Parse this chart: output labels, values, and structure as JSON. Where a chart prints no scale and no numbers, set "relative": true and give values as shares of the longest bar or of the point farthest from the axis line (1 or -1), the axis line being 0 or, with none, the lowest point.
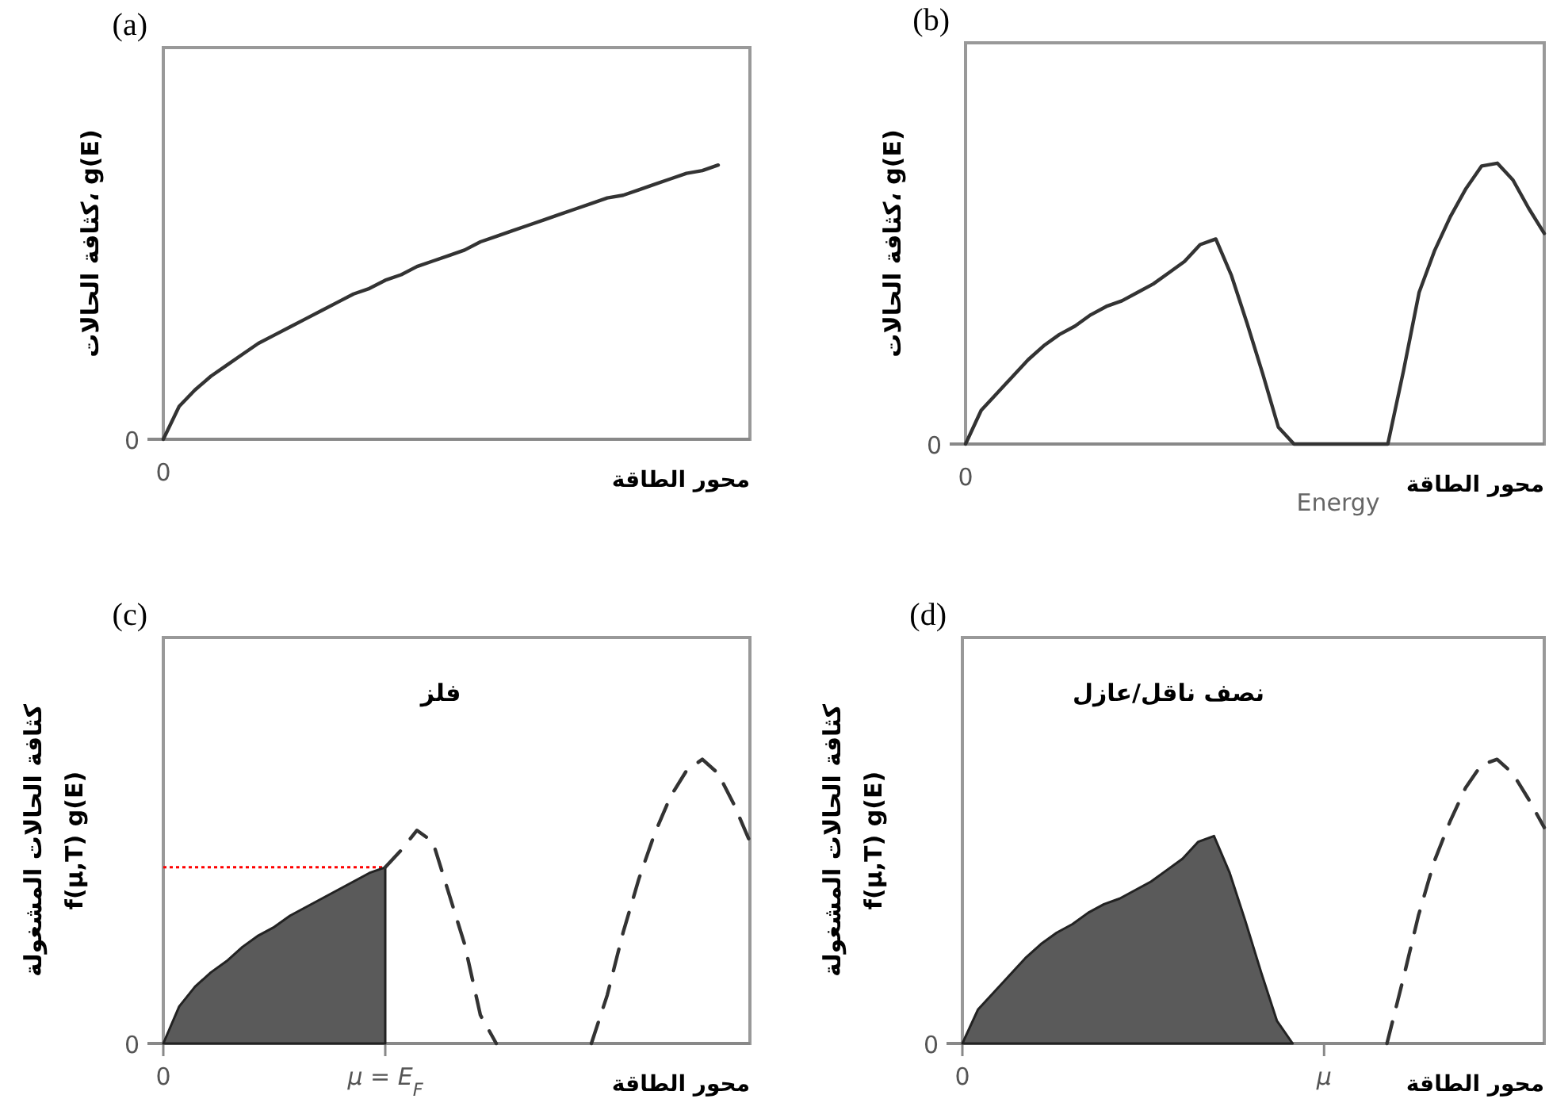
{
  "chart_data": [
    {
      "type": "line",
      "title": "(a)",
      "xlabel": "محور الطاقة",
      "ylabel": "كثافة الحالات، g(E)",
      "relative": true,
      "annotations": [
        "0",
        "0"
      ],
      "categories": [
        null,
        null,
        null,
        null,
        null,
        null,
        null,
        null,
        null,
        null,
        null,
        null,
        null,
        null,
        null,
        null,
        null,
        null,
        null,
        null,
        null,
        null,
        null,
        null,
        null,
        null,
        null,
        null,
        null,
        null,
        null,
        null,
        null,
        null,
        null,
        null,
        null,
        null
      ],
      "series": [
        {
          "color": "#333333",
          "line_style": "solid",
          "values": [
            0,
            0.12,
            0.18,
            0.23,
            0.27,
            0.31,
            0.35,
            0.38,
            0.41,
            0.44,
            0.47,
            0.5,
            0.53,
            0.55,
            0.58,
            0.6,
            0.63,
            0.65,
            0.67,
            0.69,
            0.72,
            0.74,
            0.76,
            0.78,
            0.8,
            0.82,
            0.84,
            0.86,
            0.88,
            0.89,
            0.91,
            0.93,
            0.95,
            0.97,
            0.98,
            1,
            null,
            null
          ]
        }
      ]
    },
    {
      "type": "line",
      "title": "(b)",
      "xlabel": "محور الطاقة",
      "ylabel": "كثافة الحالات، g(E)",
      "relative": true,
      "annotations": [
        "0",
        "0",
        "Energy"
      ],
      "categories": [
        null,
        null,
        null,
        null,
        null,
        null,
        null,
        null,
        null,
        null,
        null,
        null,
        null,
        null,
        null,
        null,
        null,
        null,
        null,
        null,
        null,
        null,
        null,
        null,
        null,
        null,
        null,
        null,
        null,
        null,
        null,
        null,
        null,
        null,
        null,
        null,
        null,
        null
      ],
      "series": [
        {
          "color": "#333333",
          "line_style": "solid",
          "values": [
            0,
            0.12,
            0.18,
            0.24,
            0.3,
            0.35,
            0.39,
            0.42,
            0.46,
            0.49,
            0.51,
            0.54,
            0.57,
            0.61,
            0.65,
            0.71,
            0.73,
            0.6,
            0.43,
            0.25,
            0.06,
            0,
            0,
            0,
            0,
            0,
            0,
            0,
            0.26,
            0.54,
            0.69,
            0.81,
            0.91,
            0.99,
            1,
            0.94,
            0.84,
            0.75
          ]
        }
      ]
    },
    {
      "type": "area",
      "title": "(c)",
      "xlabel": "محور الطاقة",
      "ylabel": "كثافة الحالات المشغولة\nf(μ,T) g(E)",
      "relative": true,
      "annotations": [
        "0",
        "فلز"
      ],
      "categories": [
        "0",
        null,
        null,
        null,
        null,
        null,
        null,
        null,
        null,
        null,
        null,
        null,
        null,
        null,
        "μ = E$_{F}$",
        null,
        null,
        null,
        null,
        null,
        null,
        null,
        null,
        null,
        null,
        null,
        null,
        null,
        null,
        null,
        null,
        null,
        null,
        null,
        null,
        null,
        null,
        null
      ],
      "ref_lines": [
        {
          "axis": "y",
          "value": 0.62,
          "color": "#ff0000",
          "line_style": "dotted"
        }
      ],
      "series": [
        {
          "color": "#5a5a5a",
          "line_style": "solid",
          "values": [
            0,
            0.13,
            0.2,
            0.25,
            0.29,
            0.34,
            0.38,
            0.41,
            0.45,
            0.48,
            0.51,
            0.54,
            0.57,
            0.6,
            0.62,
            null,
            null,
            null,
            null,
            null,
            null,
            null,
            null,
            null,
            null,
            null,
            null,
            null,
            null,
            null,
            null,
            null,
            null,
            null,
            null,
            null,
            null,
            null
          ]
        },
        {
          "type": "line",
          "color": "#333333",
          "line_style": "dashed",
          "values": [
            null,
            null,
            null,
            null,
            null,
            null,
            null,
            null,
            null,
            null,
            null,
            null,
            null,
            null,
            0.62,
            0.68,
            0.75,
            0.71,
            0.53,
            0.35,
            0.1,
            0,
            null,
            null,
            null,
            null,
            null,
            0,
            0.17,
            0.39,
            0.58,
            0.74,
            0.87,
            0.96,
            1,
            0.95,
            0.84,
            0.71
          ]
        }
      ]
    },
    {
      "type": "area",
      "title": "(d)",
      "xlabel": "محور الطاقة",
      "ylabel": "كثافة الحالات المشغولة\nf(μ,T) g(E)",
      "relative": true,
      "annotations": [
        "0",
        "نصف ناقل/عازل"
      ],
      "categories": [
        "0",
        null,
        null,
        null,
        null,
        null,
        null,
        null,
        null,
        null,
        null,
        null,
        null,
        null,
        null,
        null,
        null,
        null,
        null,
        null,
        null,
        null,
        null,
        "μ",
        null,
        null,
        null,
        null,
        null,
        null,
        null,
        null,
        null,
        null,
        null,
        null,
        null,
        null
      ],
      "series": [
        {
          "color": "#5a5a5a",
          "line_style": "solid",
          "values": [
            0,
            0.12,
            0.18,
            0.24,
            0.3,
            0.35,
            0.39,
            0.42,
            0.46,
            0.49,
            0.51,
            0.54,
            0.57,
            0.61,
            0.65,
            0.71,
            0.73,
            0.6,
            0.43,
            0.25,
            0.08,
            0,
            null,
            null,
            null,
            null,
            null,
            null,
            null,
            null,
            null,
            null,
            null,
            null,
            null,
            null,
            null,
            null
          ]
        },
        {
          "type": "line",
          "color": "#333333",
          "line_style": "dashed",
          "values": [
            null,
            null,
            null,
            null,
            null,
            null,
            null,
            null,
            null,
            null,
            null,
            null,
            null,
            null,
            null,
            null,
            null,
            null,
            null,
            null,
            null,
            null,
            null,
            null,
            null,
            null,
            null,
            0,
            0.22,
            0.45,
            0.64,
            0.78,
            0.9,
            0.98,
            1,
            0.95,
            0.86,
            0.76
          ]
        }
      ]
    }
  ]
}
